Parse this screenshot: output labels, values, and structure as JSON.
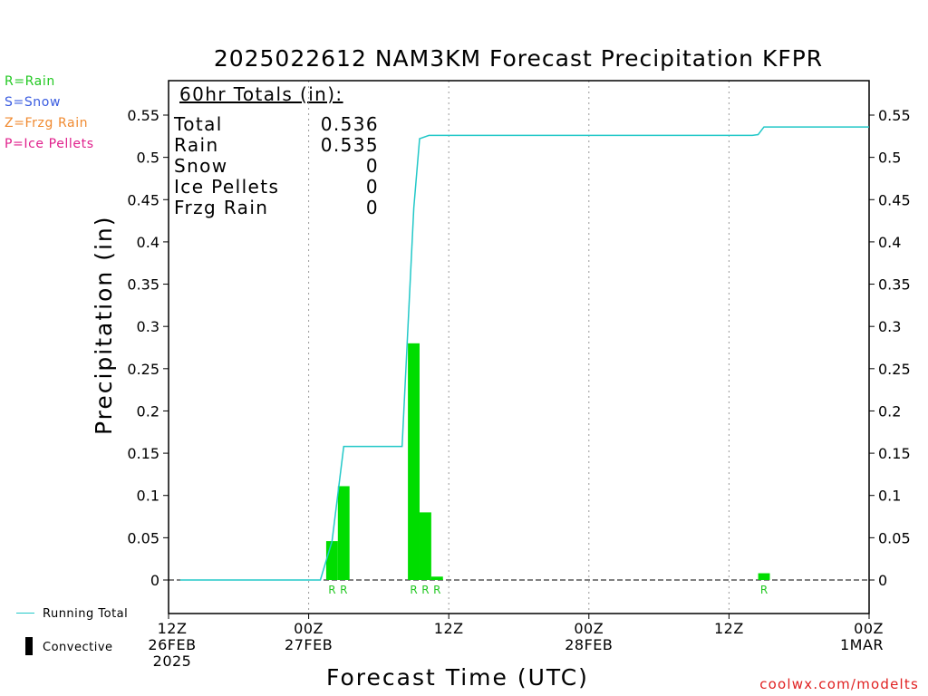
{
  "page": {
    "title": "2025022612 NAM3KM Forecast Precipitation KFPR",
    "credit": "coolwx.com/modelts",
    "legend_left": [
      {
        "label": "R=Rain",
        "color": "#22c822"
      },
      {
        "label": "S=Snow",
        "color": "#3a5ce0"
      },
      {
        "label": "Z=Frzg Rain",
        "color": "#f08a30"
      },
      {
        "label": "P=Ice Pellets",
        "color": "#e0208c"
      }
    ],
    "bottom_legend": {
      "running_total": "Running Total",
      "convective": "Convective",
      "running_total_color": "#22c8c8",
      "convective_color": "#000000"
    },
    "totals_box": {
      "header": "60hr Totals (in):",
      "rows": [
        {
          "label": "Total",
          "value": "0.536"
        },
        {
          "label": "Rain",
          "value": "0.535"
        },
        {
          "label": "Snow",
          "value": "0"
        },
        {
          "label": "Ice Pellets",
          "value": "0"
        },
        {
          "label": "Frzg Rain",
          "value": "0"
        }
      ]
    }
  },
  "chart_data": {
    "type": "bar",
    "title": "2025022612 NAM3KM Forecast Precipitation KFPR",
    "xlabel": "Forecast Time (UTC)",
    "ylabel": "Precipitation (in)",
    "ylim": [
      -0.04,
      0.59
    ],
    "yticks": [
      "0",
      "0.05",
      "0.1",
      "0.15",
      "0.2",
      "0.25",
      "0.3",
      "0.35",
      "0.4",
      "0.45",
      "0.5",
      "0.55"
    ],
    "xlim_hours": [
      0,
      60
    ],
    "x_ticks": [
      {
        "hour": 0,
        "lines": [
          "12Z",
          "26FEB",
          "2025"
        ]
      },
      {
        "hour": 12,
        "lines": [
          "00Z",
          "27FEB"
        ]
      },
      {
        "hour": 24,
        "lines": [
          "12Z"
        ]
      },
      {
        "hour": 36,
        "lines": [
          "00Z",
          "28FEB"
        ]
      },
      {
        "hour": 48,
        "lines": [
          "12Z"
        ]
      },
      {
        "hour": 60,
        "lines": [
          "00Z",
          "1MAR"
        ]
      }
    ],
    "grid_vertical_hours": [
      12,
      24,
      36,
      48
    ],
    "grid": "dotted vertical",
    "bar_color": "#00dd00",
    "bars": [
      {
        "hour": 14,
        "value": 0.046,
        "type": "R"
      },
      {
        "hour": 15,
        "value": 0.111,
        "type": "R"
      },
      {
        "hour": 21,
        "value": 0.28,
        "type": "R"
      },
      {
        "hour": 22,
        "value": 0.08,
        "type": "R"
      },
      {
        "hour": 23,
        "value": 0.004,
        "type": "R"
      },
      {
        "hour": 51,
        "value": 0.008,
        "type": "R"
      }
    ],
    "series": [
      {
        "name": "Running Total",
        "color": "#22c8c8",
        "points": [
          [
            1,
            0
          ],
          [
            13,
            0
          ],
          [
            14,
            0.046
          ],
          [
            15,
            0.158
          ],
          [
            20,
            0.158
          ],
          [
            21,
            0.44
          ],
          [
            21.5,
            0.522
          ],
          [
            22.3,
            0.526
          ],
          [
            50,
            0.526
          ],
          [
            50.5,
            0.527
          ],
          [
            51,
            0.536
          ],
          [
            60,
            0.536
          ]
        ]
      }
    ]
  }
}
